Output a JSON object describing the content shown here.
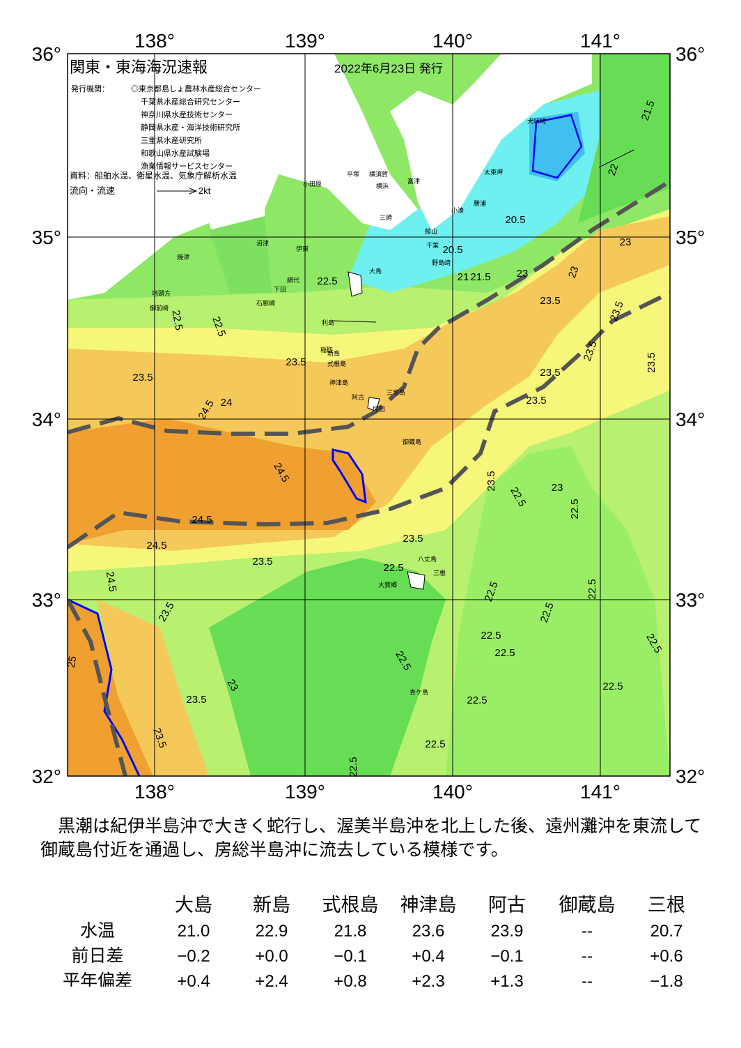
{
  "header": {
    "title": "関東・東海海況速報",
    "date": "2022年6月23日 発行",
    "issuer_label": "発行機関：",
    "issuers": [
      "◎東京都島しょ農林水産総合センター",
      "千葉県水産総合研究センター",
      "神奈川県水産技術センター",
      "静岡県水産・海洋技術研究所",
      "三重県水産研究所",
      "和歌山県水産試験場",
      "漁業情報サービスセンター"
    ],
    "source": "資料：船舶水温、衛星水温、気象庁解析水温",
    "flow_label": "流向・流速",
    "flow_scale": "2kt"
  },
  "axes": {
    "lon_labels": [
      "138°",
      "139°",
      "140°",
      "141°"
    ],
    "lat_labels": [
      "36°",
      "35°",
      "34°",
      "33°",
      "32°"
    ]
  },
  "places": [
    "小田原",
    "平塚",
    "横須賀",
    "横浜",
    "三崎",
    "富津",
    "館山",
    "千葉",
    "勝浦",
    "太東岬",
    "犬吠埼",
    "大島",
    "利島",
    "新島",
    "式根島",
    "神津島",
    "三宅島",
    "阿古",
    "坪田",
    "御蔵島",
    "八丈島",
    "三根",
    "大賀郷",
    "青ケ島",
    "石廊崎",
    "下田",
    "伊東",
    "沼津",
    "焼津",
    "御前崎",
    "地頭方",
    "野島崎",
    "網代",
    "小湊",
    "稲取"
  ],
  "contours": [
    "21.5",
    "22",
    "20.5",
    "20.5",
    "21",
    "21.5",
    "22.5",
    "23",
    "23",
    "23",
    "23.5",
    "23.5",
    "23.5",
    "23.5",
    "23.5",
    "23.5",
    "22.5",
    "22.5",
    "23.5",
    "23.5",
    "24.5",
    "24",
    "24.5",
    "24.5",
    "24.5",
    "24.5",
    "23.5",
    "23.5",
    "22.5",
    "22.5",
    "22.5",
    "22.5",
    "22.5",
    "22.5",
    "23.5",
    "23",
    "22.5",
    "22.5",
    "22.5",
    "22.5",
    "22.5",
    "22.5",
    "22.5",
    "23.5",
    "23.5",
    "22.5",
    "23",
    "25",
    "23.5"
  ],
  "summary": "黒潮は紀伊半島沖で大きく蛇行し、渥美半島沖を北上した後、遠州灘沖を東流して御蔵島付近を通過し、房総半島沖に流去している模様です。",
  "table": {
    "columns": [
      "大島",
      "新島",
      "式根島",
      "神津島",
      "阿古",
      "御蔵島",
      "三根"
    ],
    "rows": [
      {
        "label": "水温",
        "values": [
          "21.0",
          "22.9",
          "21.8",
          "23.6",
          "23.9",
          "--",
          "20.7"
        ]
      },
      {
        "label": "前日差",
        "values": [
          "−0.2",
          "+0.0",
          "−0.1",
          "+0.4",
          "−0.1",
          "--",
          "+0.6"
        ]
      },
      {
        "label": "平年偏差",
        "values": [
          "+0.4",
          "+2.4",
          "+0.8",
          "+2.3",
          "+1.3",
          "--",
          "−1.8"
        ]
      }
    ]
  }
}
